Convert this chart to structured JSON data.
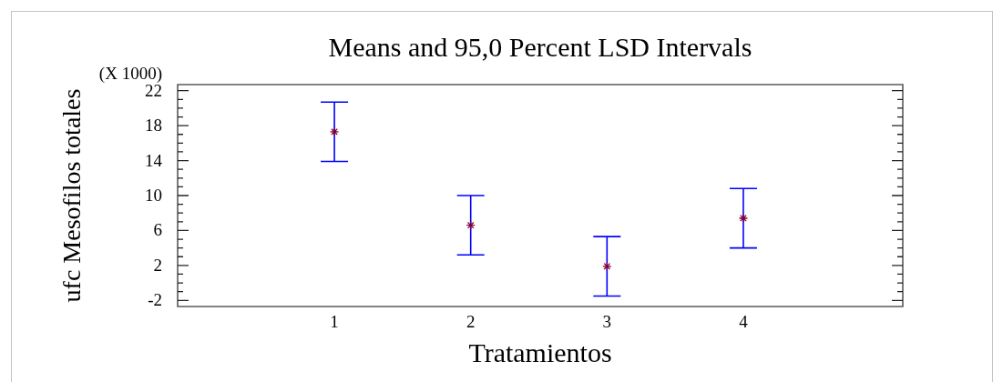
{
  "chart_data": {
    "type": "scatter",
    "title": "Means and 95,0 Percent LSD Intervals",
    "xlabel": "Tratamientos",
    "ylabel": "ufc Mesofilos totales",
    "annotations": [
      "(X 1000)"
    ],
    "x": [
      1,
      2,
      3,
      4
    ],
    "values": [
      17.3,
      6.6,
      1.9,
      7.4
    ],
    "errors": [
      3.4,
      3.4,
      3.4,
      3.4
    ],
    "color": "#80003f",
    "marker": "cross",
    "xlim": [
      -0.15,
      5.17
    ],
    "xticks": [
      1,
      2,
      3,
      4
    ],
    "ylim": [
      -2.7,
      22.7
    ],
    "yticks": [
      -2,
      {
        "value": -1,
        "label": null
      },
      {
        "value": 0,
        "label": null
      },
      {
        "value": 1,
        "label": null
      },
      2,
      {
        "value": 3,
        "label": null
      },
      {
        "value": 4,
        "label": null
      },
      {
        "value": 5,
        "label": null
      },
      6,
      {
        "value": 7,
        "label": null
      },
      {
        "value": 8,
        "label": null
      },
      {
        "value": 9,
        "label": null
      },
      10,
      {
        "value": 11,
        "label": null
      },
      {
        "value": 12,
        "label": null
      },
      {
        "value": 13,
        "label": null
      },
      14,
      {
        "value": 15,
        "label": null
      },
      {
        "value": 16,
        "label": null
      },
      {
        "value": 17,
        "label": null
      },
      18,
      {
        "value": 19,
        "label": null
      },
      {
        "value": 20,
        "label": null
      },
      {
        "value": 21,
        "label": null
      },
      22
    ]
  }
}
